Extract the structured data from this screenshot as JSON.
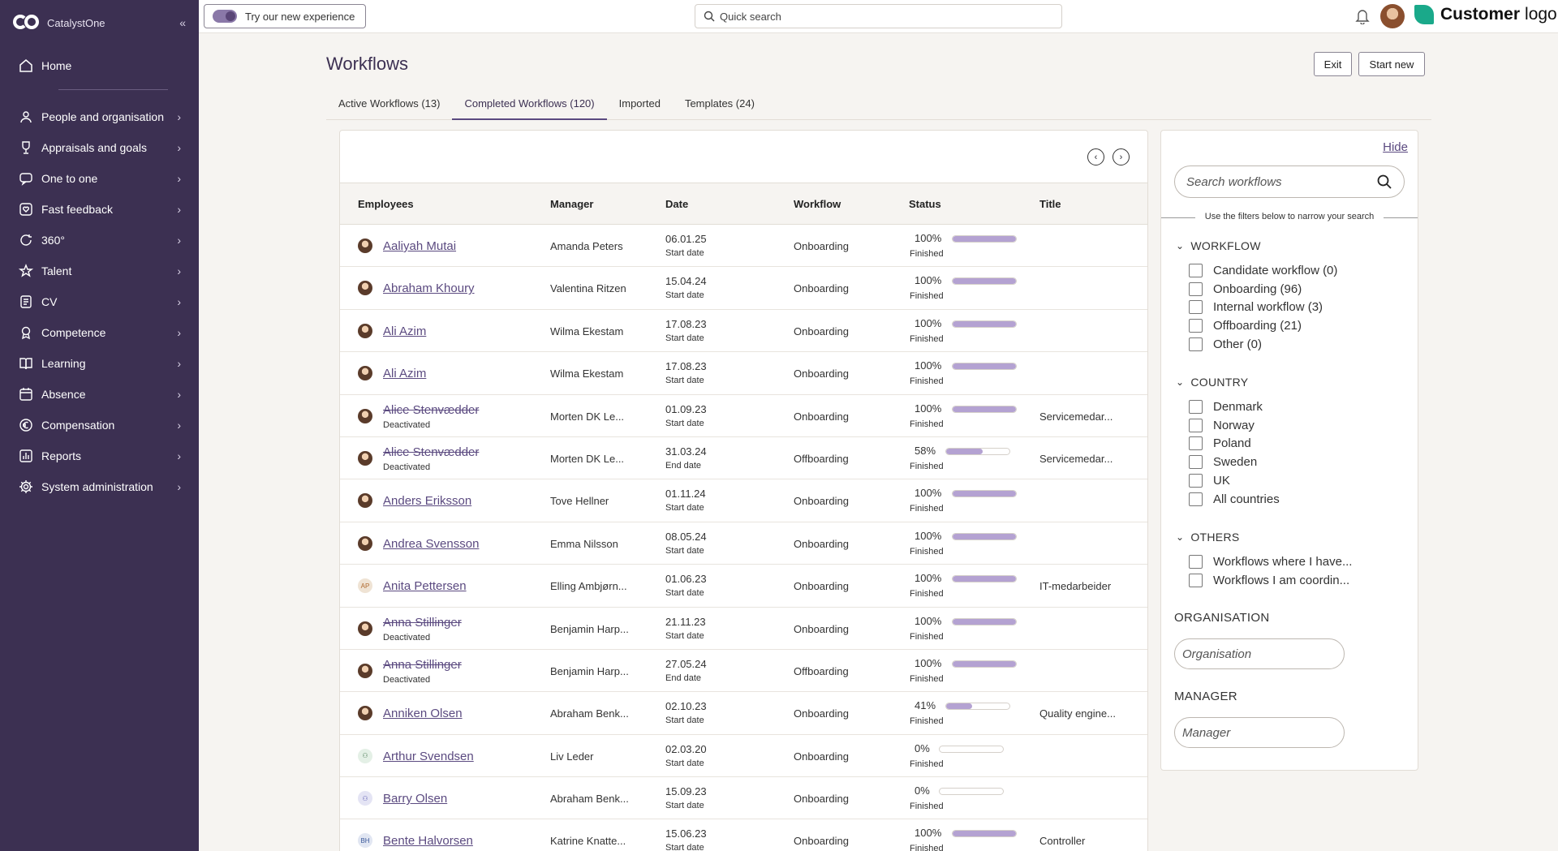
{
  "brand": {
    "name": "CatalystOne"
  },
  "sidebar": {
    "home": "Home",
    "items": [
      {
        "label": "People and organisation",
        "icon": "people-icon"
      },
      {
        "label": "Appraisals and goals",
        "icon": "trophy-icon"
      },
      {
        "label": "One to one",
        "icon": "chat-icon"
      },
      {
        "label": "Fast feedback",
        "icon": "feedback-heart-icon"
      },
      {
        "label": "360°",
        "icon": "refresh-icon"
      },
      {
        "label": "Talent",
        "icon": "star-badge-icon"
      },
      {
        "label": "CV",
        "icon": "cv-icon"
      },
      {
        "label": "Competence",
        "icon": "award-icon"
      },
      {
        "label": "Learning",
        "icon": "book-icon"
      },
      {
        "label": "Absence",
        "icon": "calendar-icon"
      },
      {
        "label": "Compensation",
        "icon": "currency-icon"
      },
      {
        "label": "Reports",
        "icon": "bar-chart-icon"
      },
      {
        "label": "System administration",
        "icon": "gear-icon"
      }
    ]
  },
  "topbar": {
    "try_label": "Try our new experience",
    "search_placeholder": "Quick search",
    "customer_logo_bold": "Customer",
    "customer_logo_light": "logo"
  },
  "page": {
    "title": "Workflows",
    "exit_label": "Exit",
    "start_label": "Start new",
    "tabs": [
      {
        "label": "Active Workflows (13)"
      },
      {
        "label": "Completed Workflows (120)"
      },
      {
        "label": "Imported"
      },
      {
        "label": "Templates (24)"
      }
    ]
  },
  "table": {
    "headers": {
      "employees": "Employees",
      "manager": "Manager",
      "date": "Date",
      "workflow": "Workflow",
      "status": "Status",
      "title": "Title"
    },
    "rows": [
      {
        "name": "Aaliyah Mutai",
        "sub": "",
        "manager": "Amanda Peters",
        "date": "06.01.25",
        "date_type": "Start date",
        "workflow": "Onboarding",
        "pct": "100%",
        "progress": 100,
        "state": "Finished",
        "title": "",
        "avatar": "portrait",
        "initials": ""
      },
      {
        "name": "Abraham Khoury",
        "sub": "",
        "manager": "Valentina Ritzen",
        "date": "15.04.24",
        "date_type": "Start date",
        "workflow": "Onboarding",
        "pct": "100%",
        "progress": 100,
        "state": "Finished",
        "title": "",
        "avatar": "portrait",
        "initials": ""
      },
      {
        "name": "Ali Azim",
        "sub": "",
        "manager": "Wilma Ekestam",
        "date": "17.08.23",
        "date_type": "Start date",
        "workflow": "Onboarding",
        "pct": "100%",
        "progress": 100,
        "state": "Finished",
        "title": "",
        "avatar": "portrait",
        "initials": ""
      },
      {
        "name": "Ali Azim",
        "sub": "",
        "manager": "Wilma Ekestam",
        "date": "17.08.23",
        "date_type": "Start date",
        "workflow": "Onboarding",
        "pct": "100%",
        "progress": 100,
        "state": "Finished",
        "title": "",
        "avatar": "portrait",
        "initials": ""
      },
      {
        "name": "Alice Stenvædder",
        "sub": "Deactivated",
        "manager": "Morten DK Le...",
        "date": "01.09.23",
        "date_type": "Start date",
        "workflow": "Onboarding",
        "pct": "100%",
        "progress": 100,
        "state": "Finished",
        "title": "Servicemedar...",
        "avatar": "portrait",
        "initials": ""
      },
      {
        "name": "Alice Stenvædder",
        "sub": "Deactivated",
        "manager": "Morten DK Le...",
        "date": "31.03.24",
        "date_type": "End date",
        "workflow": "Offboarding",
        "pct": "58%",
        "progress": 58,
        "state": "Finished",
        "title": "Servicemedar...",
        "avatar": "portrait",
        "initials": ""
      },
      {
        "name": "Anders Eriksson",
        "sub": "",
        "manager": "Tove Hellner",
        "date": "01.11.24",
        "date_type": "Start date",
        "workflow": "Onboarding",
        "pct": "100%",
        "progress": 100,
        "state": "Finished",
        "title": "",
        "avatar": "portrait",
        "initials": ""
      },
      {
        "name": "Andrea Svensson",
        "sub": "",
        "manager": "Emma Nilsson",
        "date": "08.05.24",
        "date_type": "Start date",
        "workflow": "Onboarding",
        "pct": "100%",
        "progress": 100,
        "state": "Finished",
        "title": "",
        "avatar": "portrait",
        "initials": ""
      },
      {
        "name": "Anita Pettersen",
        "sub": "",
        "manager": "Elling Ambjørn...",
        "date": "01.06.23",
        "date_type": "Start date",
        "workflow": "Onboarding",
        "pct": "100%",
        "progress": 100,
        "state": "Finished",
        "title": "IT-medarbeider",
        "avatar": "initials",
        "initials": "AP"
      },
      {
        "name": "Anna Stillinger",
        "sub": "Deactivated",
        "manager": "Benjamin Harp...",
        "date": "21.11.23",
        "date_type": "Start date",
        "workflow": "Onboarding",
        "pct": "100%",
        "progress": 100,
        "state": "Finished",
        "title": "",
        "avatar": "portrait",
        "initials": ""
      },
      {
        "name": "Anna Stillinger",
        "sub": "Deactivated",
        "manager": "Benjamin Harp...",
        "date": "27.05.24",
        "date_type": "End date",
        "workflow": "Offboarding",
        "pct": "100%",
        "progress": 100,
        "state": "Finished",
        "title": "",
        "avatar": "portrait",
        "initials": ""
      },
      {
        "name": "Anniken Olsen",
        "sub": "",
        "manager": "Abraham Benk...",
        "date": "02.10.23",
        "date_type": "Start date",
        "workflow": "Onboarding",
        "pct": "41%",
        "progress": 41,
        "state": "Finished",
        "title": "Quality engine...",
        "avatar": "portrait",
        "initials": ""
      },
      {
        "name": "Arthur Svendsen",
        "sub": "",
        "manager": "Liv Leder",
        "date": "02.03.20",
        "date_type": "Start date",
        "workflow": "Onboarding",
        "pct": "0%",
        "progress": 0,
        "state": "Finished",
        "title": "",
        "avatar": "person",
        "initials": ""
      },
      {
        "name": "Barry Olsen",
        "sub": "",
        "manager": "Abraham Benk...",
        "date": "15.09.23",
        "date_type": "Start date",
        "workflow": "Onboarding",
        "pct": "0%",
        "progress": 0,
        "state": "Finished",
        "title": "",
        "avatar": "person-b",
        "initials": ""
      },
      {
        "name": "Bente Halvorsen",
        "sub": "",
        "manager": "Katrine Knatte...",
        "date": "15.06.23",
        "date_type": "Start date",
        "workflow": "Onboarding",
        "pct": "100%",
        "progress": 100,
        "state": "Finished",
        "title": "Controller",
        "avatar": "initials-b",
        "initials": "BH"
      }
    ]
  },
  "filters": {
    "hide_label": "Hide",
    "search_placeholder": "Search workflows",
    "hint": "Use the filters below to narrow your search",
    "workflow_heading": "WORKFLOW",
    "workflow_options": [
      "Candidate workflow (0)",
      "Onboarding (96)",
      "Internal workflow (3)",
      "Offboarding (21)",
      "Other (0)"
    ],
    "country_heading": "COUNTRY",
    "country_options": [
      "Denmark",
      "Norway",
      "Poland",
      "Sweden",
      "UK",
      "All countries"
    ],
    "others_heading": "OTHERS",
    "others_options": [
      "Workflows where I have...",
      "Workflows I am coordin..."
    ],
    "organisation_label": "ORGANISATION",
    "organisation_placeholder": "Organisation",
    "manager_label": "MANAGER",
    "manager_placeholder": "Manager"
  },
  "colors": {
    "sidebar": "#3c3052",
    "accent": "#5b4a80",
    "progress": "#b4a2d2"
  }
}
